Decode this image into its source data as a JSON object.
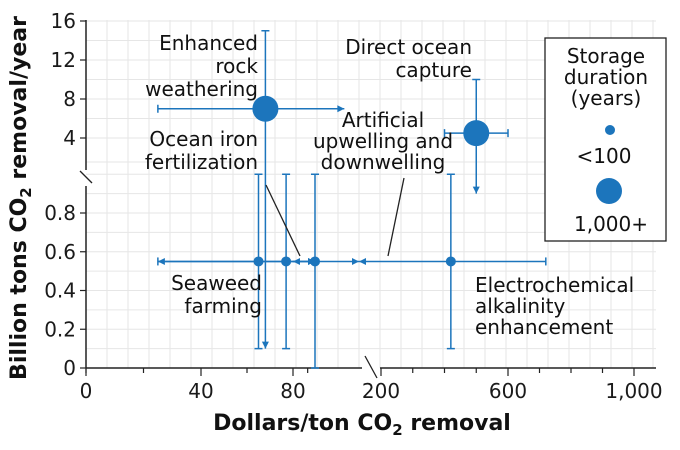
{
  "chart_data": {
    "type": "scatter",
    "title": "",
    "xlabel_prefix": "Dollars/ton CO",
    "xlabel_sub": "2",
    "xlabel_suffix": " removal",
    "ylabel_prefix": "Billion tons CO",
    "ylabel_sub": "2",
    "ylabel_suffix": " removal/year",
    "x_axis": {
      "scale": "broken",
      "ticks": [
        0,
        40,
        80,
        200,
        600,
        1000
      ],
      "tick_labels": [
        "0",
        "40",
        "80",
        "200",
        "600",
        "1,000"
      ],
      "break_between": [
        80,
        200
      ]
    },
    "y_axis": {
      "scale": "broken",
      "lower_ticks": [
        0,
        0.2,
        0.4,
        0.6,
        0.8
      ],
      "lower_tick_labels": [
        "0",
        "0.2",
        "0.4",
        "0.6",
        "0.8"
      ],
      "upper_ticks": [
        4,
        8,
        12,
        16
      ],
      "upper_tick_labels": [
        "4",
        "8",
        "12",
        "16"
      ],
      "break_between": [
        1,
        4
      ]
    },
    "grid": true,
    "legend": {
      "position": "right",
      "title_lines": [
        "Storage",
        "duration",
        "(years)"
      ],
      "items": [
        {
          "label": "<100",
          "size": "small"
        },
        {
          "label": "1,000+",
          "size": "large"
        }
      ]
    },
    "points": [
      {
        "name_lines": [
          "Enhanced",
          "rock",
          "weathering"
        ],
        "x": 68,
        "x_low": 25,
        "x_high": 150,
        "x_high_open": true,
        "y": 7,
        "y_low": 0.1,
        "y_high": 15,
        "y_low_open": true,
        "storage": "1,000+"
      },
      {
        "name_lines": [
          "Direct ocean",
          "capture"
        ],
        "x": 500,
        "x_low": 400,
        "x_high": 600,
        "y": 4.5,
        "y_low": 0.9,
        "y_high": 10,
        "y_low_open": true,
        "storage": "1,000+"
      },
      {
        "name_lines": [
          "Ocean iron",
          "fertilization"
        ],
        "x": 77,
        "x_low": 25,
        "x_high": 110,
        "x_low_open": true,
        "x_high_open": true,
        "y": 0.55,
        "y_low": 0.1,
        "y_high": 1,
        "storage": "<100"
      },
      {
        "name_lines": [
          "Seaweed",
          "farming"
        ],
        "x": 65,
        "x_low": 25,
        "x_high": 110,
        "x_high_open": true,
        "y": 0.55,
        "y_low": 0.1,
        "y_high": 1,
        "storage": "<100"
      },
      {
        "name_lines": [
          "Artificial",
          "upwelling and",
          "downwelling"
        ],
        "x": 110,
        "x_low": 80,
        "x_high": 170,
        "x_low_open": true,
        "x_high_open": true,
        "y": 0.55,
        "y_low": 0,
        "y_high": 1,
        "storage": "<100"
      },
      {
        "name_lines": [
          "Electrochemical",
          "alkalinity",
          "enhancement"
        ],
        "x": 420,
        "x_low": 170,
        "x_high": 720,
        "x_low_open": true,
        "y": 0.55,
        "y_low": 0.1,
        "y_high": 1,
        "storage": "<100"
      }
    ]
  }
}
